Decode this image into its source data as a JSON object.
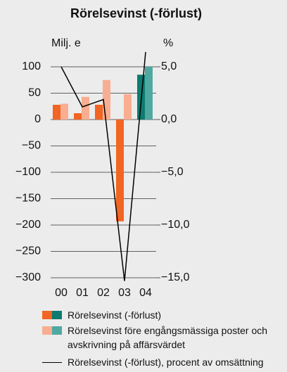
{
  "chart_data": {
    "type": "bar_line",
    "title": "Rörelsevinst (-förlust)",
    "y_label": "Milj. e",
    "y2_label": "%",
    "categories": [
      "00",
      "01",
      "02",
      "03",
      "04"
    ],
    "series": [
      {
        "name": "Rörelsevinst (-förlust)",
        "type": "bar",
        "colors": [
          "#f26522",
          "#f26522",
          "#f26522",
          "#f26522",
          "#0e7b70"
        ],
        "values": [
          28,
          12,
          28,
          -193,
          85
        ]
      },
      {
        "name": "Rörelsevinst före engångsmässiga poster och avskrivning på affärsvärdet",
        "type": "bar",
        "colors": [
          "#f9ad91",
          "#f9ad91",
          "#f9ad91",
          "#f9ad91",
          "#4fa9a1"
        ],
        "values": [
          30,
          43,
          75,
          48,
          100
        ]
      },
      {
        "name": "Rörelsevinst (-förlust), procent av omsättning",
        "type": "line",
        "axis": "y2",
        "color": "#000000",
        "values": [
          5.0,
          1.2,
          1.9,
          -15.3,
          6.4
        ]
      }
    ],
    "ylim": [
      -300,
      100
    ],
    "yticks": [
      100,
      50,
      0,
      {
        "value": -50,
        "label": "−50"
      },
      {
        "value": -100,
        "label": "−100"
      },
      {
        "value": -150,
        "label": "−150"
      },
      {
        "value": -200,
        "label": "−200"
      },
      {
        "value": -250,
        "label": "−250"
      },
      {
        "value": -300,
        "label": "−300"
      }
    ],
    "y2lim": [
      -15,
      5
    ],
    "y2ticks": [
      {
        "value": 5,
        "label": "5,0"
      },
      {
        "value": 0,
        "label": "0,0"
      },
      {
        "value": -5,
        "label": "−5,0"
      },
      {
        "value": -10,
        "label": "−10,0"
      },
      {
        "value": -15,
        "label": "−15,0"
      }
    ],
    "grid": true
  }
}
